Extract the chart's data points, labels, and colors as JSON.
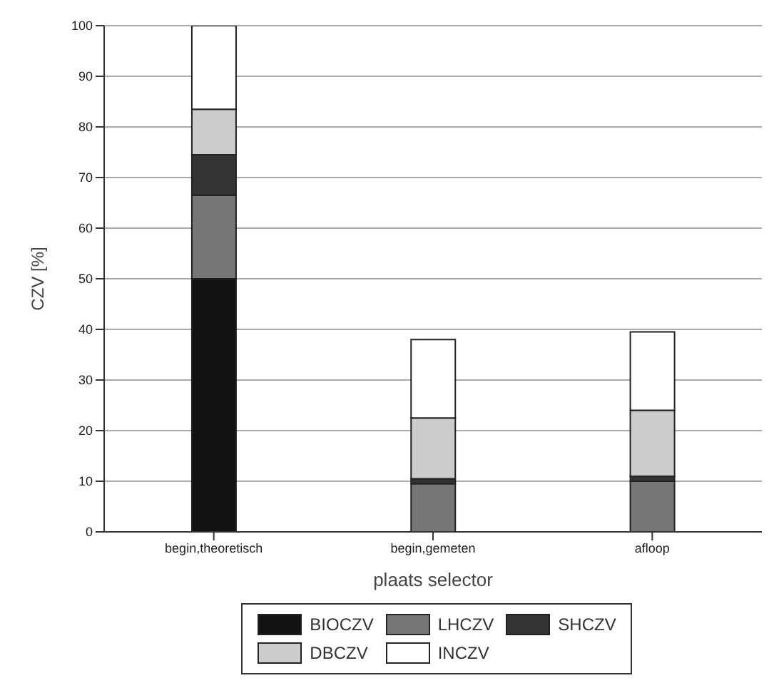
{
  "chart_data": {
    "type": "bar",
    "stacked": true,
    "xlabel": "plaats selector",
    "ylabel": "CZV [%]",
    "categories": [
      "begin,theoretisch",
      "begin,gemeten",
      "afloop"
    ],
    "series": [
      {
        "name": "BIOCZV",
        "color": "#111111",
        "values": [
          50,
          0,
          0
        ]
      },
      {
        "name": "LHCZV",
        "color": "#777777",
        "values": [
          16.5,
          9.5,
          10
        ]
      },
      {
        "name": "SHCZV",
        "color": "#333333",
        "values": [
          8,
          1,
          1
        ]
      },
      {
        "name": "DBCZV",
        "color": "#cccccc",
        "values": [
          9,
          12,
          13
        ]
      },
      {
        "name": "INCZV",
        "color": "#ffffff",
        "values": [
          16.5,
          15.5,
          15.5
        ]
      }
    ],
    "ylim": [
      0,
      100
    ],
    "yticks": [
      0,
      10,
      20,
      30,
      40,
      50,
      60,
      70,
      80,
      90,
      100
    ],
    "grid": "y",
    "legend": "bottom"
  }
}
